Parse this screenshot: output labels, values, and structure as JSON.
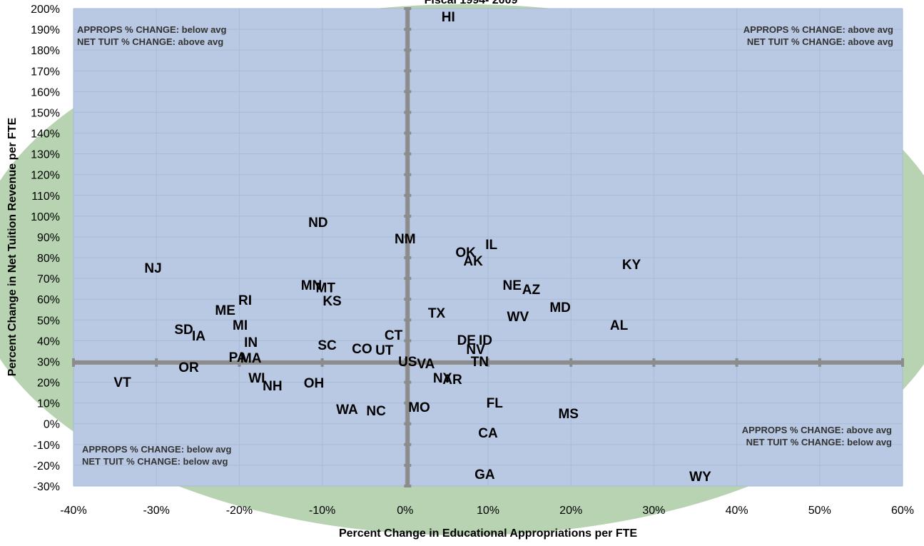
{
  "chart_data": {
    "type": "scatter",
    "title": "Fiscal 1994- 2009",
    "x_label": "Percent Change in Educational Appropriations per FTE",
    "y_label": "Percent Change in Net Tuition Revenue per FTE",
    "xlim": [
      -40,
      60
    ],
    "ylim": [
      -30,
      200
    ],
    "xticks": [
      {
        "value": -40,
        "label": "-40%"
      },
      {
        "value": -30,
        "label": "-30%"
      },
      {
        "value": -20,
        "label": "-20%"
      },
      {
        "value": -10,
        "label": "-10%"
      },
      {
        "value": 0,
        "label": "0%"
      },
      {
        "value": 10,
        "label": "10%"
      },
      {
        "value": 20,
        "label": "20%"
      },
      {
        "value": 30,
        "label": "30%"
      },
      {
        "value": 40,
        "label": "40%"
      },
      {
        "value": 50,
        "label": "50%"
      },
      {
        "value": 60,
        "label": "60%"
      }
    ],
    "yticks": [
      {
        "value": -30,
        "label": "-30%"
      },
      {
        "value": -20,
        "label": "-20%"
      },
      {
        "value": -10,
        "label": "-10%"
      },
      {
        "value": 0,
        "label": "0%"
      },
      {
        "value": 10,
        "label": "10%"
      },
      {
        "value": 20,
        "label": "20%"
      },
      {
        "value": 30,
        "label": "30%"
      },
      {
        "value": 40,
        "label": "40%"
      },
      {
        "value": 50,
        "label": "50%"
      },
      {
        "value": 60,
        "label": "60%"
      },
      {
        "value": 70,
        "label": "70%"
      },
      {
        "value": 80,
        "label": "80%"
      },
      {
        "value": 90,
        "label": "90%"
      },
      {
        "value": 100,
        "label": "100%"
      },
      {
        "value": 110,
        "label": "110%"
      },
      {
        "value": 120,
        "label": "120%"
      },
      {
        "value": 130,
        "label": "130%"
      },
      {
        "value": 140,
        "label": "140%"
      },
      {
        "value": 150,
        "label": "150%"
      },
      {
        "value": 160,
        "label": "160%"
      },
      {
        "value": 170,
        "label": "170%"
      },
      {
        "value": 180,
        "label": "180%"
      },
      {
        "value": 190,
        "label": "190%"
      },
      {
        "value": 200,
        "label": "200%"
      }
    ],
    "grid": true,
    "avg_lines": {
      "x": 0.3,
      "y": 29.5,
      "color": "#8c8c8c"
    },
    "quadrant_notes": [
      {
        "lines": [
          "APPROPS % CHANGE: below avg",
          "NET TUIT % CHANGE: above avg"
        ],
        "corner": "upper left"
      },
      {
        "lines": [
          "APPROPS % CHANGE: above avg",
          "NET TUIT % CHANGE: above avg"
        ],
        "corner": "upper right"
      },
      {
        "lines": [
          "APPROPS % CHANGE: below avg",
          "NET TUIT % CHANGE: below avg"
        ],
        "corner": "lower left"
      },
      {
        "lines": [
          "APPROPS % CHANGE: above avg",
          "NET TUIT % CHANGE: below avg"
        ],
        "corner": "lower right"
      }
    ],
    "groups": [
      {
        "color": "#1f4e8c",
        "points": [
          {
            "label": "HI",
            "x": 5.2,
            "y": 195.5
          },
          {
            "label": "ND",
            "x": -10.5,
            "y": 96.5
          },
          {
            "label": "NM",
            "x": 0,
            "y": 88.6
          },
          {
            "label": "OK",
            "x": 7.3,
            "y": 82.1
          },
          {
            "label": "IL",
            "x": 10.4,
            "y": 85.9
          },
          {
            "label": "AK",
            "x": 8.2,
            "y": 78
          },
          {
            "label": "KY",
            "x": 27.3,
            "y": 76.2
          },
          {
            "label": "NJ",
            "x": -30.4,
            "y": 74.5
          },
          {
            "label": "NE",
            "x": 12.9,
            "y": 66.3
          },
          {
            "label": "AZ",
            "x": 15.2,
            "y": 64.2
          },
          {
            "label": "MN",
            "x": -11.3,
            "y": 66.3
          },
          {
            "label": "MT",
            "x": -9.6,
            "y": 65
          },
          {
            "label": "RI",
            "x": -19.3,
            "y": 59.1
          },
          {
            "label": "KS",
            "x": -8.8,
            "y": 58.7
          },
          {
            "label": "ME",
            "x": -21.7,
            "y": 54.2
          },
          {
            "label": "MD",
            "x": 18.7,
            "y": 55.6
          },
          {
            "label": "TX",
            "x": 3.8,
            "y": 52.9
          },
          {
            "label": "WV",
            "x": 13.6,
            "y": 51.2
          },
          {
            "label": "MI",
            "x": -19.9,
            "y": 47
          },
          {
            "label": "AL",
            "x": 25.8,
            "y": 47
          },
          {
            "label": "SD",
            "x": -26.7,
            "y": 45
          },
          {
            "label": "IA",
            "x": -24.9,
            "y": 41.9
          },
          {
            "label": "CT",
            "x": -1.4,
            "y": 42.2
          },
          {
            "label": "IN",
            "x": -18.6,
            "y": 38.8
          },
          {
            "label": "DE",
            "x": 7.4,
            "y": 39.8
          },
          {
            "label": "ID",
            "x": 9.7,
            "y": 39.8
          },
          {
            "label": "SC",
            "x": -9.4,
            "y": 37.4
          },
          {
            "label": "CO",
            "x": -5.2,
            "y": 35.7
          },
          {
            "label": "UT",
            "x": -2.5,
            "y": 35
          },
          {
            "label": "NV",
            "x": 8.5,
            "y": 35.3
          },
          {
            "label": "PA",
            "x": -20.2,
            "y": 31.6
          },
          {
            "label": "MA",
            "x": -18.6,
            "y": 31.2
          },
          {
            "label": "TN",
            "x": 9,
            "y": 29.5
          },
          {
            "label": "VA",
            "x": 2.5,
            "y": 28.5
          },
          {
            "label": "OR",
            "x": -26.1,
            "y": 26.7
          },
          {
            "label": "VT",
            "x": -34.1,
            "y": 19.5
          },
          {
            "label": "NY",
            "x": 4.5,
            "y": 21.6
          },
          {
            "label": "AR",
            "x": 5.7,
            "y": 20.9
          },
          {
            "label": "WI",
            "x": -17.9,
            "y": 21.6
          },
          {
            "label": "NH",
            "x": -16,
            "y": 17.8
          },
          {
            "label": "OH",
            "x": -11,
            "y": 19.2
          },
          {
            "label": "FL",
            "x": 10.8,
            "y": 9.6
          },
          {
            "label": "MO",
            "x": 1.7,
            "y": 7.5
          },
          {
            "label": "WA",
            "x": -7,
            "y": 6.5
          },
          {
            "label": "NC",
            "x": -3.5,
            "y": 5.8
          },
          {
            "label": "MS",
            "x": 19.7,
            "y": 4.4
          },
          {
            "label": "CA",
            "x": 10,
            "y": -4.9
          },
          {
            "label": "GA",
            "x": 9.6,
            "y": -24.8
          },
          {
            "label": "WY",
            "x": 35.6,
            "y": -25.9
          }
        ]
      },
      {
        "color": "#a0285a",
        "points": [
          {
            "label": "US",
            "x": 0.3,
            "y": 29.5
          }
        ]
      }
    ]
  }
}
